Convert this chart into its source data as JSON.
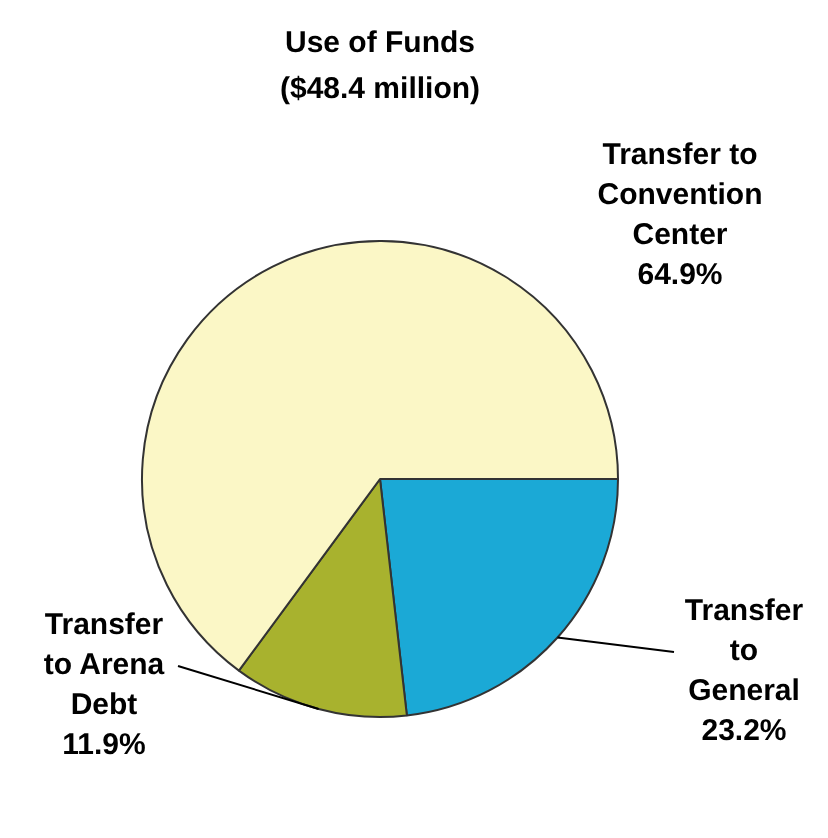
{
  "chart_data": {
    "type": "pie",
    "title": "Use of Funds",
    "subtitle": "($48.4 million)",
    "categories": [
      "Transfer to General",
      "Transfer to Arena Debt",
      "Transfer to Convention Center"
    ],
    "values": [
      23.2,
      11.9,
      64.9
    ],
    "colors": [
      "#1ba9d6",
      "#a8b22e",
      "#fbf7c6"
    ],
    "value_labels": [
      "23.2%",
      "11.9%",
      "64.9%"
    ],
    "legend": false
  }
}
